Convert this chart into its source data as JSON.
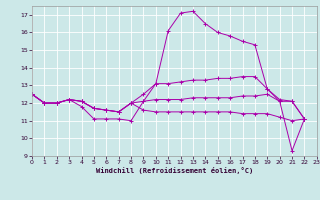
{
  "xlabel": "Windchill (Refroidissement éolien,°C)",
  "xlim": [
    0,
    23
  ],
  "ylim": [
    9,
    17.5
  ],
  "yticks": [
    9,
    10,
    11,
    12,
    13,
    14,
    15,
    16,
    17
  ],
  "xticks": [
    0,
    1,
    2,
    3,
    4,
    5,
    6,
    7,
    8,
    9,
    10,
    11,
    12,
    13,
    14,
    15,
    16,
    17,
    18,
    19,
    20,
    21,
    22,
    23
  ],
  "bg_color": "#cce8e8",
  "line_color": "#aa00aa",
  "grid_color": "#b8dada",
  "lines": [
    [
      12.5,
      12.0,
      12.0,
      12.2,
      11.8,
      11.1,
      11.1,
      11.1,
      11.0,
      12.1,
      13.1,
      16.1,
      17.1,
      17.2,
      16.5,
      16.0,
      15.8,
      15.5,
      15.3,
      12.8,
      12.1,
      9.3,
      11.1
    ],
    [
      12.5,
      12.0,
      12.0,
      12.2,
      12.1,
      11.7,
      11.6,
      11.5,
      12.0,
      12.5,
      13.1,
      13.1,
      13.2,
      13.3,
      13.3,
      13.4,
      13.4,
      13.5,
      13.5,
      12.8,
      12.2,
      12.1,
      11.1
    ],
    [
      12.5,
      12.0,
      12.0,
      12.2,
      12.1,
      11.7,
      11.6,
      11.5,
      12.0,
      12.1,
      12.2,
      12.2,
      12.2,
      12.3,
      12.3,
      12.3,
      12.3,
      12.4,
      12.4,
      12.5,
      12.1,
      12.1,
      11.1
    ],
    [
      12.5,
      12.0,
      12.0,
      12.2,
      12.1,
      11.7,
      11.6,
      11.5,
      12.0,
      11.6,
      11.5,
      11.5,
      11.5,
      11.5,
      11.5,
      11.5,
      11.5,
      11.4,
      11.4,
      11.4,
      11.2,
      11.0,
      11.1
    ]
  ]
}
